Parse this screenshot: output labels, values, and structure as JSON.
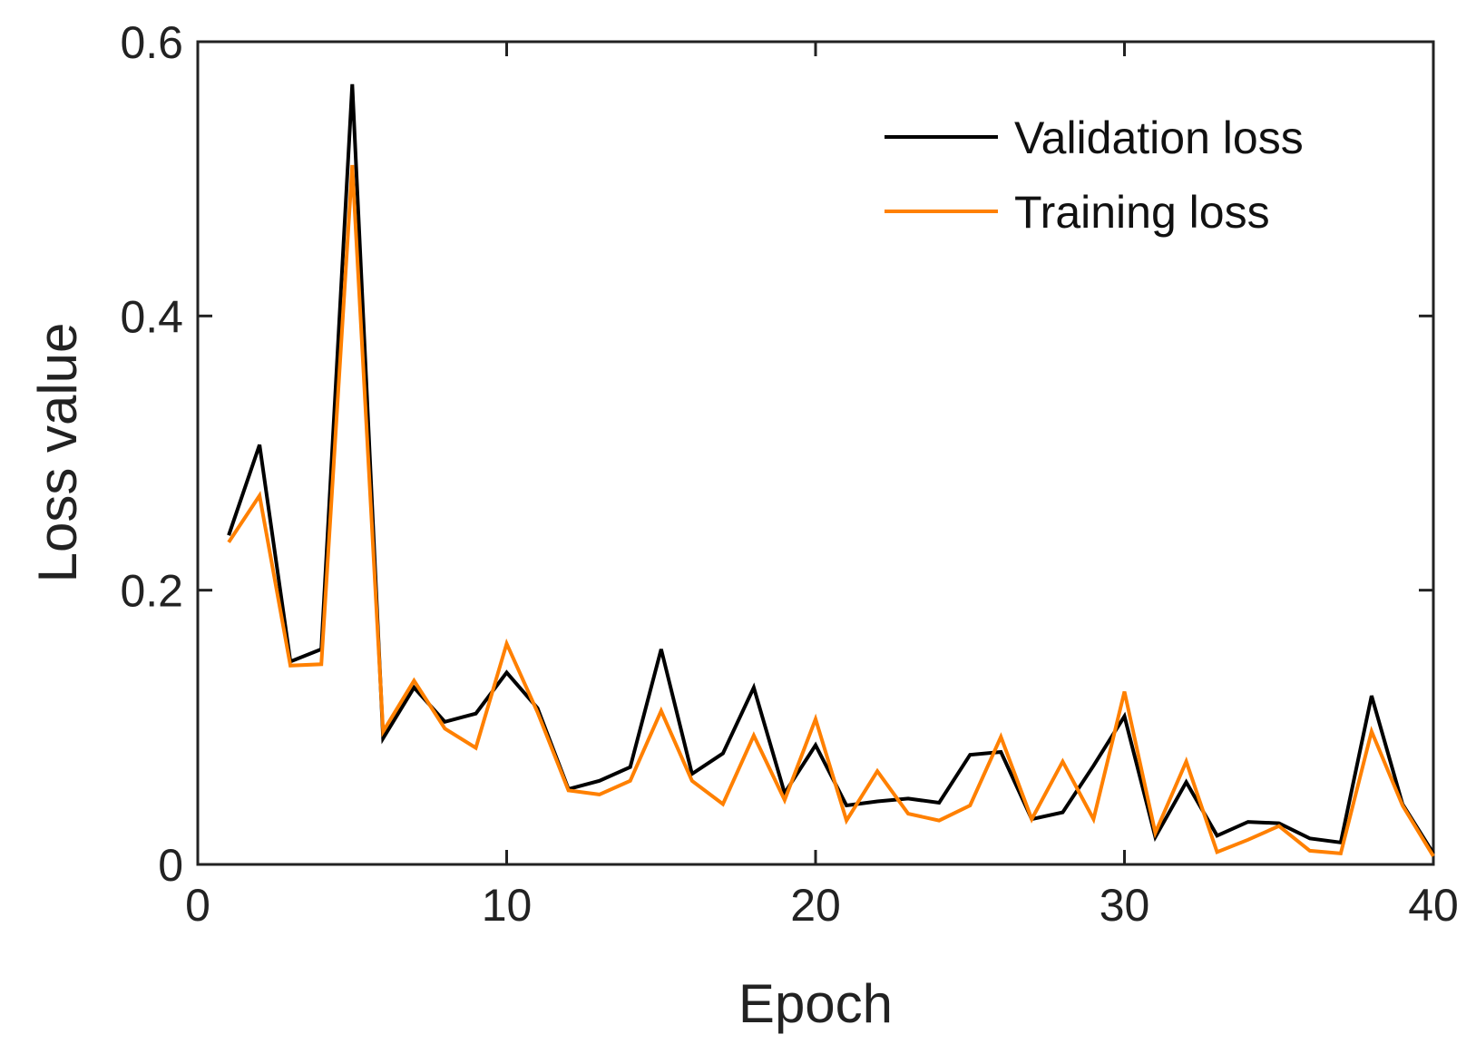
{
  "chart_data": {
    "type": "line",
    "title": "",
    "xlabel": "Epoch",
    "ylabel": "Loss value",
    "xlim": [
      0,
      40
    ],
    "ylim": [
      0,
      0.6
    ],
    "xticks": [
      0,
      10,
      20,
      30,
      40
    ],
    "xtick_labels": [
      "0",
      "10",
      "20",
      "30",
      "40"
    ],
    "yticks": [
      0,
      0.2,
      0.4,
      0.6
    ],
    "ytick_labels": [
      "0",
      "0.2",
      "0.4",
      "0.6"
    ],
    "grid": false,
    "legend": {
      "position": "top-right"
    },
    "x": [
      1,
      2,
      3,
      4,
      5,
      6,
      7,
      8,
      9,
      10,
      11,
      12,
      13,
      14,
      15,
      16,
      17,
      18,
      19,
      20,
      21,
      22,
      23,
      24,
      25,
      26,
      27,
      28,
      29,
      30,
      31,
      32,
      33,
      34,
      35,
      36,
      37,
      38,
      39,
      40
    ],
    "series": [
      {
        "name": "Validation loss",
        "color": "#000000",
        "values": [
          0.24,
          0.306,
          0.148,
          0.157,
          0.569,
          0.092,
          0.129,
          0.104,
          0.11,
          0.14,
          0.114,
          0.055,
          0.061,
          0.071,
          0.157,
          0.066,
          0.081,
          0.129,
          0.052,
          0.087,
          0.043,
          0.046,
          0.048,
          0.045,
          0.08,
          0.082,
          0.033,
          0.038,
          0.072,
          0.108,
          0.02,
          0.06,
          0.021,
          0.031,
          0.03,
          0.019,
          0.016,
          0.123,
          0.044,
          0.008
        ]
      },
      {
        "name": "Training loss",
        "color": "#ff8000",
        "values": [
          0.235,
          0.269,
          0.145,
          0.146,
          0.51,
          0.097,
          0.134,
          0.099,
          0.085,
          0.161,
          0.111,
          0.054,
          0.051,
          0.061,
          0.112,
          0.061,
          0.044,
          0.094,
          0.047,
          0.106,
          0.032,
          0.068,
          0.037,
          0.032,
          0.043,
          0.093,
          0.033,
          0.075,
          0.033,
          0.126,
          0.023,
          0.075,
          0.009,
          0.018,
          0.028,
          0.01,
          0.008,
          0.097,
          0.043,
          0.006
        ]
      }
    ]
  }
}
